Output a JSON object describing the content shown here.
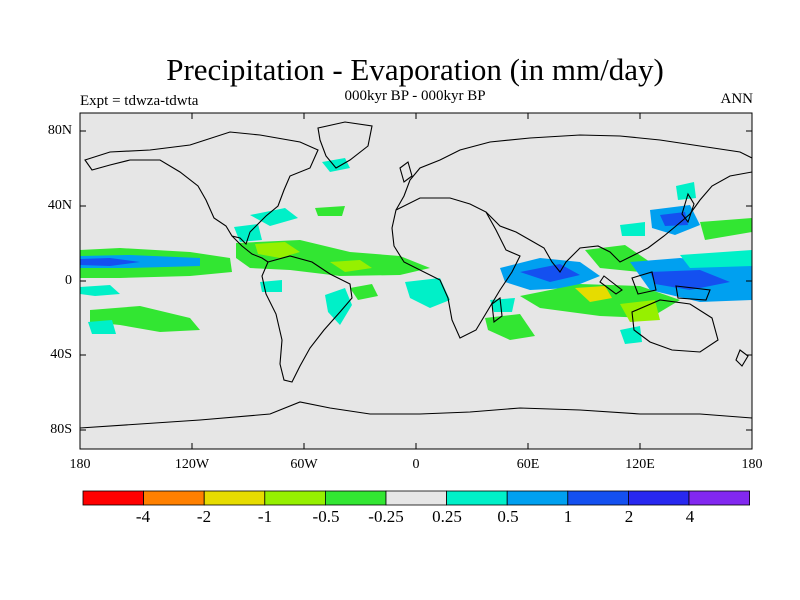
{
  "title": "Precipitation - Evaporation (in mm/day)",
  "subtitle": "000kyr BP - 000kyr BP",
  "left_label": "Expt = tdwza-tdwta",
  "right_label": "ANN",
  "lat_ticks": [
    "80N",
    "40N",
    "0",
    "40S",
    "80S"
  ],
  "lon_ticks": [
    "180",
    "120W",
    "60W",
    "0",
    "60E",
    "120E",
    "180"
  ],
  "colorbar": {
    "colors": [
      "#ff0000",
      "#ff8000",
      "#e6dc00",
      "#96f000",
      "#32e632",
      "#e6e6e6",
      "#00f0c8",
      "#00a0f0",
      "#1450f0",
      "#2828f0",
      "#8228f0"
    ],
    "labels": [
      "-4",
      "-2",
      "-1",
      "-0.5",
      "-0.25",
      "0.25",
      "0.5",
      "1",
      "2",
      "4"
    ]
  },
  "colors": {
    "background": "#e6e6e6",
    "coast": "#000000"
  }
}
